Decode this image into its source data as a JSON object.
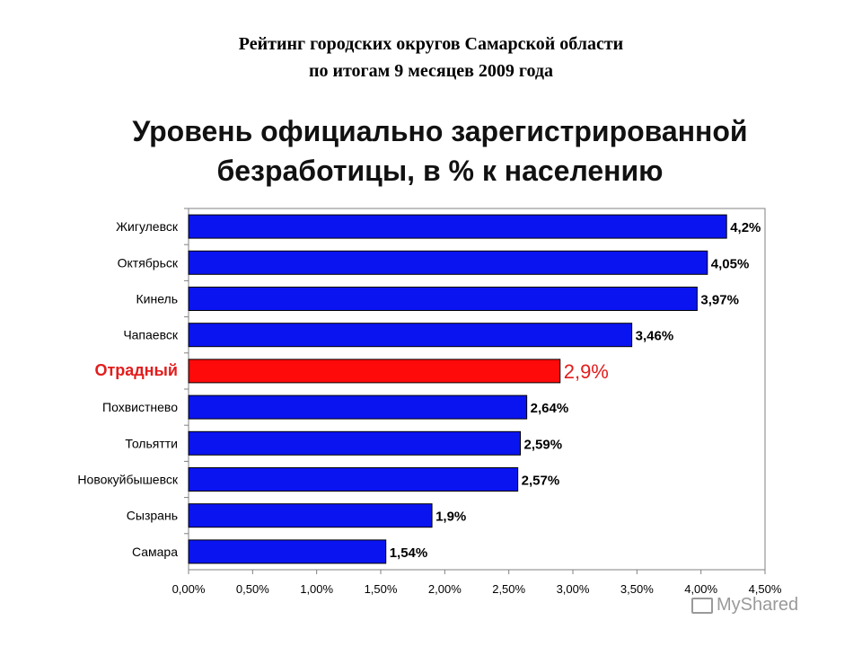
{
  "header": {
    "line1": "Рейтинг городских округов Самарской области",
    "line2": "по итогам 9 месяцев 2009 года"
  },
  "chart_data": {
    "type": "bar",
    "orientation": "horizontal",
    "title_line1": "Уровень официально зарегистрированной",
    "title_line2": "безработицы, в % к населению",
    "categories": [
      "Жигулевск",
      "Октябрьск",
      "Кинель",
      "Чапаевск",
      "Отрадный",
      "Похвистнево",
      "Тольятти",
      "Новокуйбышевск",
      "Сызрань",
      "Самара"
    ],
    "values": [
      4.2,
      4.05,
      3.97,
      3.46,
      2.9,
      2.64,
      2.59,
      2.57,
      1.9,
      1.54
    ],
    "value_labels": [
      "4,2%",
      "4,05%",
      "3,97%",
      "3,46%",
      "2,9%",
      "2,64%",
      "2,59%",
      "2,57%",
      "1,9%",
      "1,54%"
    ],
    "highlight_category": "Отрадный",
    "xlim": [
      0,
      4.5
    ],
    "xticks": [
      0,
      0.5,
      1.0,
      1.5,
      2.0,
      2.5,
      3.0,
      3.5,
      4.0,
      4.5
    ],
    "xtick_labels": [
      "0,00%",
      "0,50%",
      "1,00%",
      "1,50%",
      "2,00%",
      "2,50%",
      "3,00%",
      "3,50%",
      "4,00%",
      "4,50%"
    ],
    "grid": false,
    "colors": {
      "bar": "#0a14f0",
      "highlight": "#ff0a0a",
      "highlight_text": "#e31c1c"
    }
  },
  "watermark": {
    "text": "MyShared",
    "icon": "projector-icon"
  }
}
